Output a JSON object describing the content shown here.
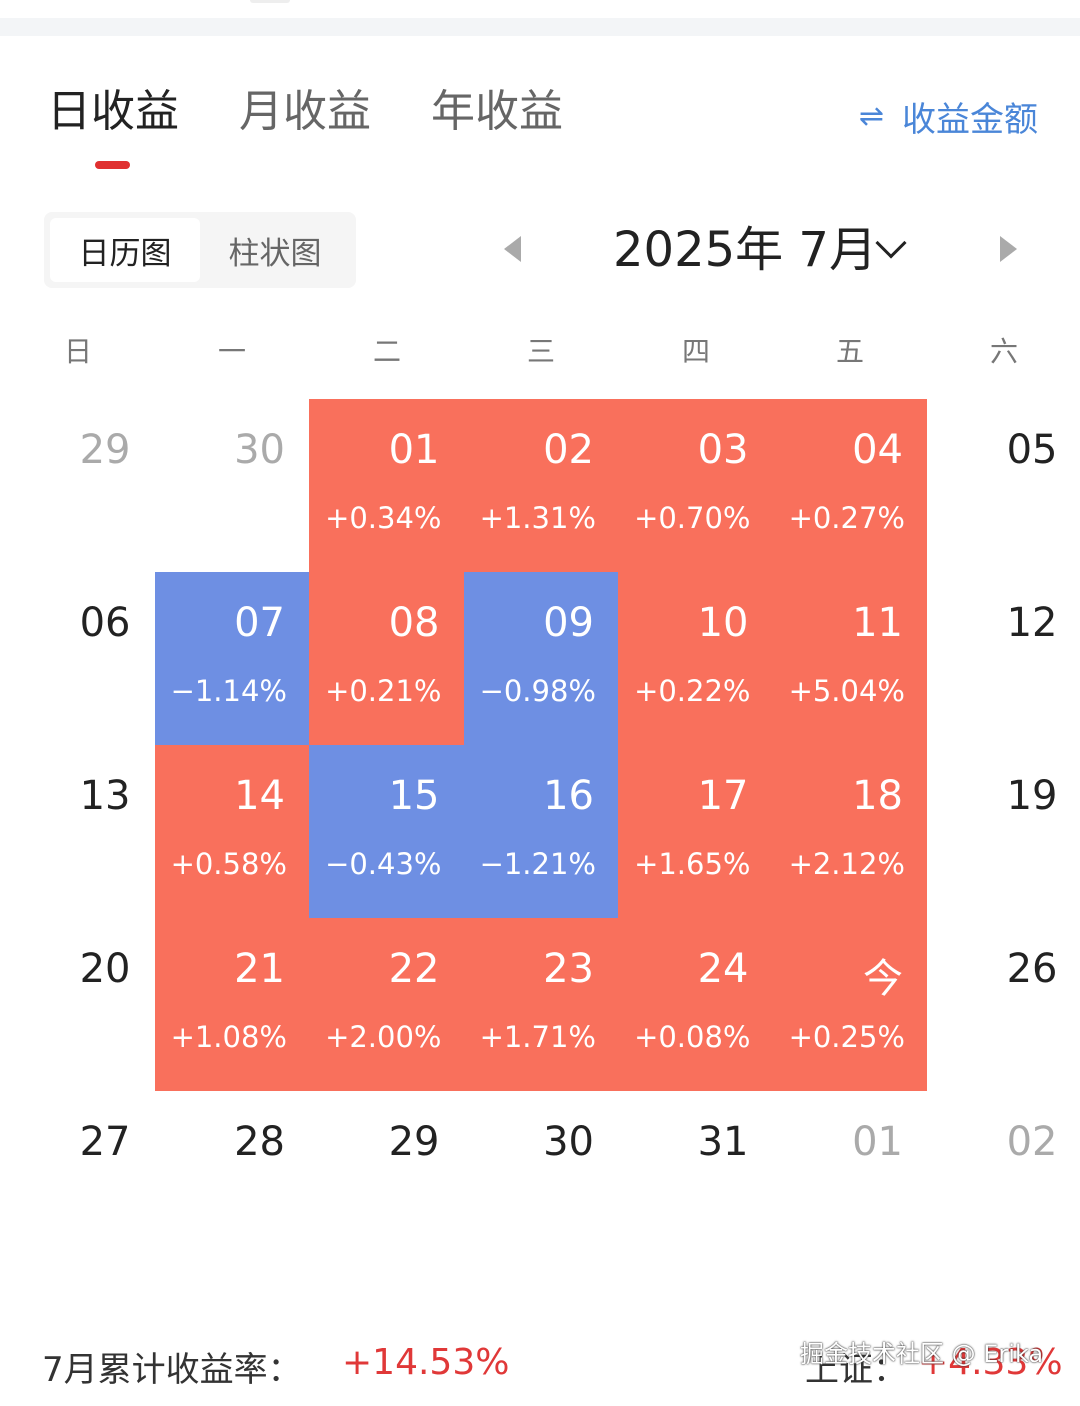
{
  "tabs": [
    {
      "label": "日收益",
      "active": true
    },
    {
      "label": "月收益",
      "active": false
    },
    {
      "label": "年收益",
      "active": false
    }
  ],
  "toggle_amount": {
    "icon": "⇌",
    "label": "收益金额"
  },
  "view_toggle": [
    {
      "label": "日历图",
      "active": true
    },
    {
      "label": "柱状图",
      "active": false
    }
  ],
  "month_nav": {
    "label": "2025年 7月"
  },
  "weekdays": [
    "日",
    "一",
    "二",
    "三",
    "四",
    "五",
    "六"
  ],
  "colors": {
    "up": "#f9705c",
    "down": "#6e8fe3",
    "accent_red": "#e03838",
    "link_blue": "#4a86d8"
  },
  "calendar": [
    [
      {
        "day": "29",
        "type": "muted"
      },
      {
        "day": "30",
        "type": "muted"
      },
      {
        "day": "01",
        "pct": "+0.34%",
        "type": "up"
      },
      {
        "day": "02",
        "pct": "+1.31%",
        "type": "up"
      },
      {
        "day": "03",
        "pct": "+0.70%",
        "type": "up"
      },
      {
        "day": "04",
        "pct": "+0.27%",
        "type": "up"
      },
      {
        "day": "05",
        "type": "normal"
      }
    ],
    [
      {
        "day": "06",
        "type": "normal"
      },
      {
        "day": "07",
        "pct": "−1.14%",
        "type": "down"
      },
      {
        "day": "08",
        "pct": "+0.21%",
        "type": "up"
      },
      {
        "day": "09",
        "pct": "−0.98%",
        "type": "down"
      },
      {
        "day": "10",
        "pct": "+0.22%",
        "type": "up"
      },
      {
        "day": "11",
        "pct": "+5.04%",
        "type": "up"
      },
      {
        "day": "12",
        "type": "normal"
      }
    ],
    [
      {
        "day": "13",
        "type": "normal"
      },
      {
        "day": "14",
        "pct": "+0.58%",
        "type": "up"
      },
      {
        "day": "15",
        "pct": "−0.43%",
        "type": "down"
      },
      {
        "day": "16",
        "pct": "−1.21%",
        "type": "down"
      },
      {
        "day": "17",
        "pct": "+1.65%",
        "type": "up"
      },
      {
        "day": "18",
        "pct": "+2.12%",
        "type": "up"
      },
      {
        "day": "19",
        "type": "normal"
      }
    ],
    [
      {
        "day": "20",
        "type": "normal"
      },
      {
        "day": "21",
        "pct": "+1.08%",
        "type": "up"
      },
      {
        "day": "22",
        "pct": "+2.00%",
        "type": "up"
      },
      {
        "day": "23",
        "pct": "+1.71%",
        "type": "up"
      },
      {
        "day": "24",
        "pct": "+0.08%",
        "type": "up"
      },
      {
        "day": "今",
        "pct": "+0.25%",
        "type": "up"
      },
      {
        "day": "26",
        "type": "normal"
      }
    ],
    [
      {
        "day": "27",
        "type": "normal"
      },
      {
        "day": "28",
        "type": "normal"
      },
      {
        "day": "29",
        "type": "normal"
      },
      {
        "day": "30",
        "type": "normal"
      },
      {
        "day": "31",
        "type": "normal"
      },
      {
        "day": "01",
        "type": "muted"
      },
      {
        "day": "02",
        "type": "muted"
      }
    ]
  ],
  "footer": {
    "cumulative_label": "7月累计收益率：",
    "cumulative_value": "+14.53%",
    "index_label": "上证：",
    "index_value": "+4.33%",
    "watermark": "掘金技术社区 @ Erika"
  }
}
